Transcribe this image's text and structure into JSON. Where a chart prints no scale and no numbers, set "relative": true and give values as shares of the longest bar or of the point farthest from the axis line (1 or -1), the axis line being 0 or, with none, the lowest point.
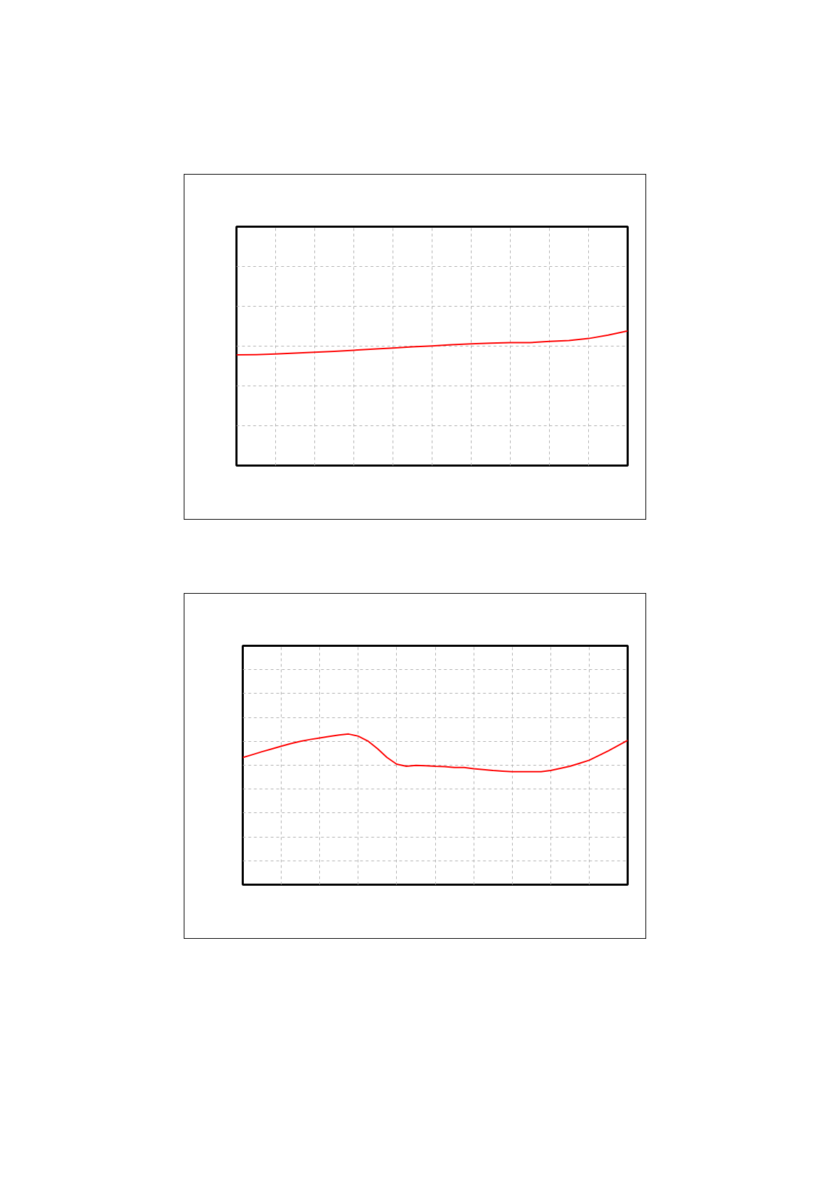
{
  "chart_data": [
    {
      "type": "line",
      "relative": true,
      "grid": true,
      "categories": [
        null,
        null,
        null,
        null,
        null,
        null,
        null,
        null,
        null,
        null,
        null,
        null,
        null,
        null,
        null,
        null,
        null,
        null,
        null,
        null,
        null
      ],
      "series": [
        {
          "color": "#ff0000",
          "values": [
            0.822,
            0.824,
            0.829,
            0.835,
            0.842,
            0.849,
            0.857,
            0.866,
            0.873,
            0.882,
            0.889,
            0.898,
            0.904,
            0.909,
            0.913,
            0.913,
            0.922,
            0.929,
            0.944,
            0.969,
            1.0
          ]
        }
      ]
    },
    {
      "type": "line",
      "relative": true,
      "grid": true,
      "categories": [
        null,
        null,
        null,
        null,
        null,
        null,
        null,
        null,
        null,
        null,
        null,
        null,
        null,
        null,
        null,
        null,
        null,
        null,
        null,
        null,
        null,
        null,
        null,
        null,
        null,
        null,
        null,
        null,
        null,
        null,
        null,
        null,
        null,
        null,
        null,
        null,
        null,
        null,
        null,
        null,
        null
      ],
      "series": [
        {
          "color": "#ff0000",
          "values": [
            0.844,
            0.863,
            0.883,
            0.901,
            0.919,
            0.937,
            0.952,
            0.964,
            0.974,
            0.984,
            0.994,
            1.0,
            0.986,
            0.954,
            0.903,
            0.844,
            0.8,
            0.786,
            0.792,
            0.79,
            0.786,
            0.784,
            0.778,
            0.778,
            0.77,
            0.764,
            0.758,
            0.754,
            0.75,
            0.75,
            0.75,
            0.75,
            0.758,
            0.772,
            0.786,
            0.806,
            0.826,
            0.857,
            0.889,
            0.923,
            0.958
          ]
        }
      ]
    }
  ]
}
